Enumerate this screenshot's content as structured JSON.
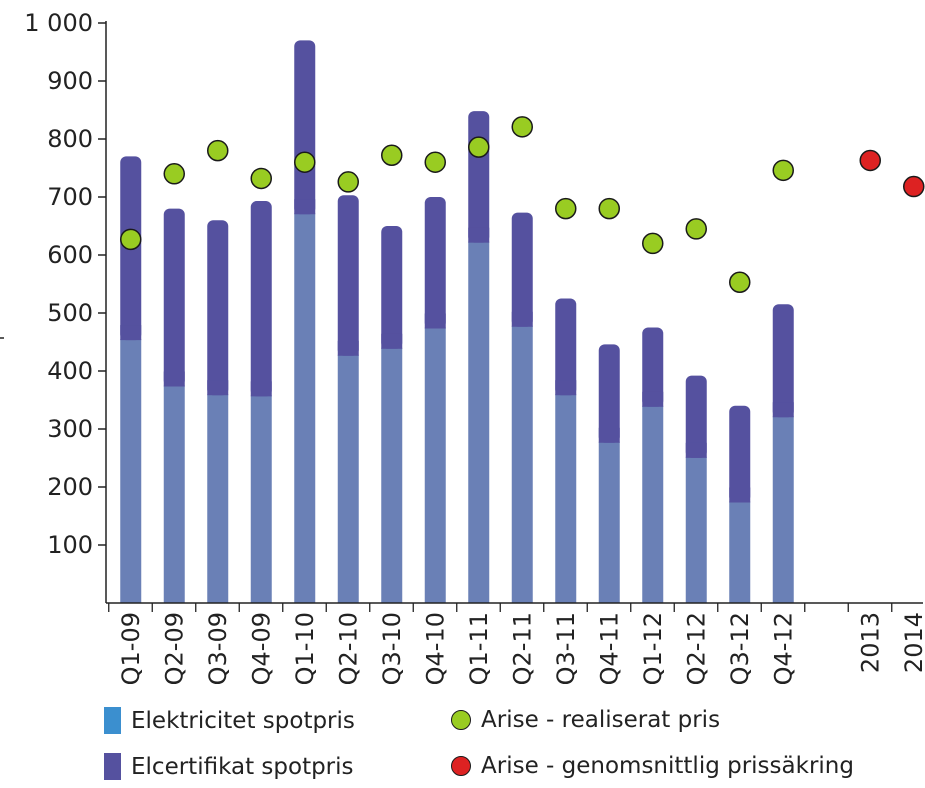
{
  "chart_data": {
    "type": "bar",
    "title": "",
    "xlabel": "",
    "ylabel": "",
    "ylim": [
      0,
      1000
    ],
    "y_ticks": [
      100,
      200,
      300,
      400,
      500,
      600,
      700,
      800,
      900,
      1000
    ],
    "y_tick_labels": [
      "100",
      "200",
      "300",
      "400",
      "500",
      "600",
      "700",
      "800",
      "900",
      "1 000"
    ],
    "categories": [
      "Q1-09",
      "Q2-09",
      "Q3-09",
      "Q4-09",
      "Q1-10",
      "Q2-10",
      "Q3-10",
      "Q4-10",
      "Q1-11",
      "Q2-11",
      "Q3-11",
      "Q4-11",
      "Q1-12",
      "Q2-12",
      "Q3-12",
      "Q4-12",
      "",
      "2013",
      "2014"
    ],
    "stacked": true,
    "series": [
      {
        "name": "Elektricitet spotpris",
        "kind": "bar",
        "color": "#6a80b6",
        "values": [
          455,
          375,
          360,
          358,
          672,
          428,
          440,
          475,
          623,
          478,
          360,
          278,
          340,
          252,
          175,
          322,
          null,
          null,
          null
        ]
      },
      {
        "name": "Elcertifikat spotpris",
        "kind": "bar",
        "color": "#55519f",
        "values": [
          315,
          305,
          300,
          335,
          298,
          275,
          210,
          225,
          225,
          195,
          165,
          168,
          135,
          140,
          165,
          193,
          null,
          null,
          null
        ]
      },
      {
        "name": "Arise - realiserat pris",
        "kind": "scatter",
        "color": "#99cc22",
        "values": [
          627,
          740,
          780,
          732,
          760,
          726,
          772,
          760,
          786,
          821,
          680,
          680,
          620,
          645,
          553,
          746,
          null,
          null,
          null
        ]
      },
      {
        "name": "Arise - genomsnittlig prissäkring",
        "kind": "scatter",
        "color": "#dd2222",
        "values": [
          null,
          null,
          null,
          null,
          null,
          null,
          null,
          null,
          null,
          null,
          null,
          null,
          null,
          null,
          null,
          null,
          null,
          763,
          718
        ]
      }
    ],
    "legend": {
      "placement": "bottom",
      "items": [
        {
          "label": "Elektricitet spotpris",
          "color": "#3b8fcf",
          "marker": "bar"
        },
        {
          "label": "Arise - realiserat pris",
          "color": "#99cc22",
          "marker": "circle"
        },
        {
          "label": "Elcertifikat spotpris",
          "color": "#55519f",
          "marker": "bar"
        },
        {
          "label": "Arise - genomsnittlig prissäkring",
          "color": "#dd2222",
          "marker": "circle"
        }
      ]
    },
    "grid": false
  }
}
